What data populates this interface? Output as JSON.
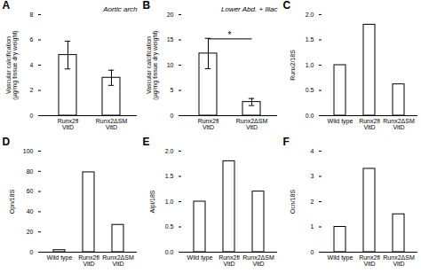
{
  "chart_data": [
    {
      "type": "bar",
      "title": "Aortic arch",
      "ylabel": "Vascular calcification\n(μg/mg tissue dry weight)",
      "categories": [
        "Runx2fl\nVitD",
        "Runx2ΔSM\nVitD"
      ],
      "values": [
        4.8,
        3.0
      ],
      "errors": [
        1.1,
        0.6
      ],
      "color": "white",
      "ylim": [
        0,
        8
      ],
      "yticks": [
        0,
        2,
        4,
        6,
        8
      ],
      "grid": false,
      "annotations": [
        {
          "text": "A"
        }
      ]
    },
    {
      "type": "bar",
      "title": "Lower Abd. + Iliac",
      "ylabel": "Vascular calcification\n(μg/mg tissue dry weight)",
      "categories": [
        "Runx2fl\nVitD",
        "Runx2ΔSM\nVitD"
      ],
      "values": [
        12.3,
        2.7
      ],
      "errors": [
        3.0,
        0.7
      ],
      "color": "white",
      "ylim": [
        0,
        20
      ],
      "yticks": [
        0,
        5,
        10,
        15,
        20
      ],
      "grid": false,
      "annotations": [
        {
          "text": "B"
        },
        {
          "text": "*",
          "x": [
            "Runx2fl\nVitD",
            "Runx2ΔSM\nVitD"
          ],
          "y": 15.2
        }
      ]
    },
    {
      "type": "bar",
      "ylabel": "Runx2/18S",
      "categories": [
        "Wild type",
        "Runx2fl\nVitD",
        "Runx2ΔSM\nVitD"
      ],
      "values": [
        1.0,
        1.8,
        0.62
      ],
      "color": "white",
      "ylim": [
        0,
        2.0
      ],
      "yticks": [
        {
          "value": 0,
          "label": "0.0"
        },
        0.5,
        {
          "value": 1.0,
          "label": "1.0"
        },
        1.5,
        {
          "value": 2.0,
          "label": "2.0"
        }
      ],
      "grid": false,
      "annotations": [
        {
          "text": "C"
        }
      ]
    },
    {
      "type": "bar",
      "ylabel": "Opn/18S",
      "categories": [
        "Wild type",
        "Runx2fl\nVitD",
        "Runx2ΔSM\nVitD"
      ],
      "values": [
        2.0,
        79.0,
        27.0
      ],
      "color": "white",
      "ylim": [
        0,
        100
      ],
      "yticks": [
        0,
        20,
        40,
        60,
        80,
        100
      ],
      "grid": false,
      "annotations": [
        {
          "text": "D"
        }
      ]
    },
    {
      "type": "bar",
      "ylabel": "Alpl/18S",
      "categories": [
        "Wild type",
        "Runx2fl\nVitD",
        "Runx2ΔSM\nVitD"
      ],
      "values": [
        1.0,
        1.8,
        1.2
      ],
      "color": "white",
      "ylim": [
        0,
        2.0
      ],
      "yticks": [
        {
          "value": 0,
          "label": "0.0"
        },
        0.5,
        {
          "value": 1.0,
          "label": "1.0"
        },
        1.5,
        {
          "value": 2.0,
          "label": "2.0"
        }
      ],
      "grid": false,
      "annotations": [
        {
          "text": "E"
        }
      ]
    },
    {
      "type": "bar",
      "ylabel": "Ocn/18S",
      "categories": [
        "Wild type",
        "Runx2fl\nVitD",
        "Runx2ΔSM\nVitD"
      ],
      "values": [
        1.0,
        3.3,
        1.5
      ],
      "color": "white",
      "ylim": [
        0,
        4
      ],
      "yticks": [
        0,
        1,
        2,
        3,
        4
      ],
      "grid": false,
      "annotations": [
        {
          "text": "F"
        }
      ]
    }
  ]
}
